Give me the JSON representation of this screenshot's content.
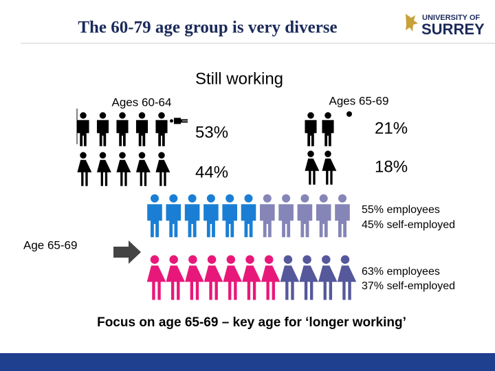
{
  "header": {
    "title": "The 60-79 age group is very diverse",
    "logo": {
      "line1": "UNIVERSITY OF",
      "line2": "SURREY"
    }
  },
  "still_working": {
    "heading": "Still working",
    "groups": [
      {
        "label": "Ages 60-64",
        "men": "53%",
        "women": "44%"
      },
      {
        "label": "Ages 65-69",
        "men": "21%",
        "women": "18%"
      }
    ]
  },
  "age_label": "Age 65-69",
  "men_breakdown": [
    "55% employees",
    "45% self-employed"
  ],
  "women_breakdown": [
    "63% employees",
    "37% self-employed"
  ],
  "footer": "Focus on age 65-69 – key age for ‘longer working’"
}
